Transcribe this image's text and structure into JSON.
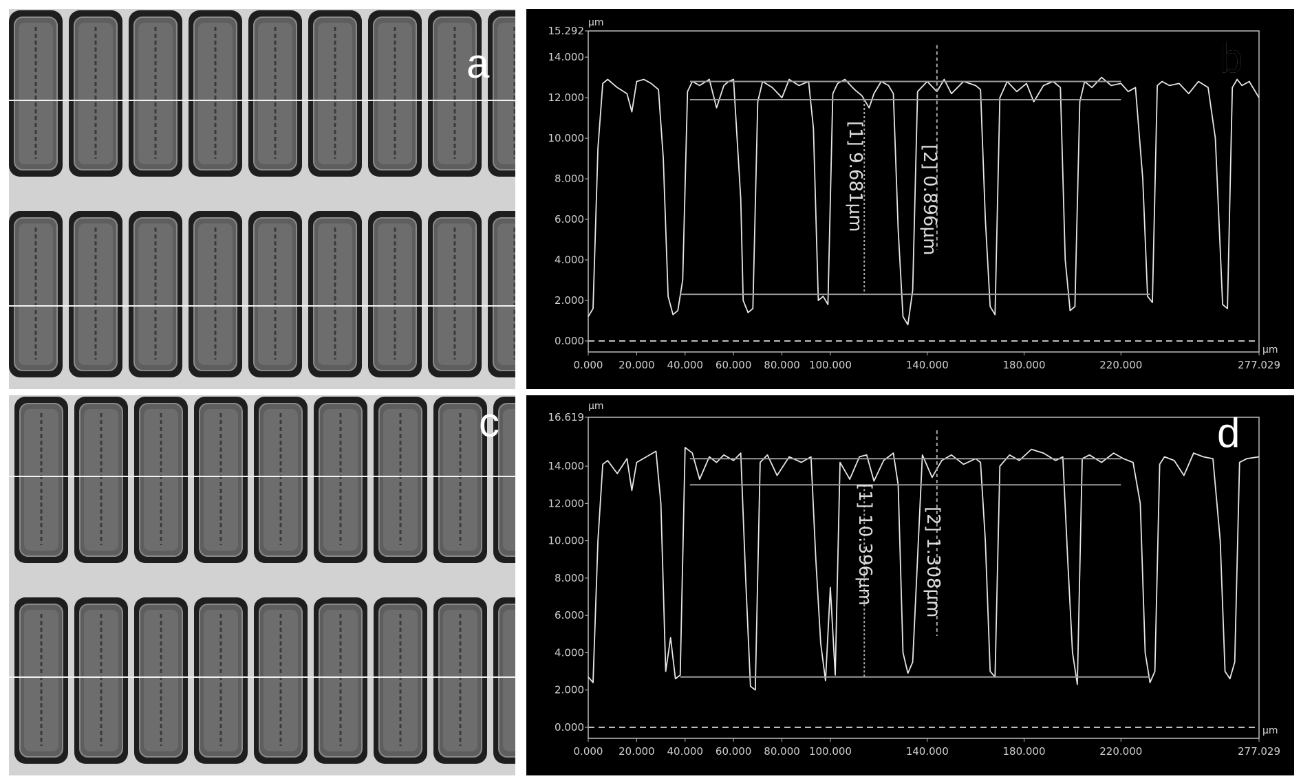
{
  "figure": {
    "panels": [
      {
        "letter": "a",
        "kind": "micrograph"
      },
      {
        "letter": "b",
        "kind": "height-profile"
      },
      {
        "letter": "c",
        "kind": "micrograph"
      },
      {
        "letter": "d",
        "kind": "height-profile"
      }
    ]
  },
  "colors": {
    "plot_bg": "#000000",
    "trace": "#e6e6e6",
    "micrograph_bg": "#d2d2d2",
    "pillar_frame": "#1e1e1e"
  },
  "chart_data": [
    {
      "panel": "b",
      "type": "line",
      "y_unit_label": "µm",
      "x_unit_label": "µm",
      "ylim": [
        0,
        15.292
      ],
      "xlim": [
        0,
        277.029
      ],
      "y_ticks": [
        "15.292",
        "14.000",
        "12.000",
        "10.000",
        "8.000",
        "6.000",
        "4.000",
        "2.000",
        "0.000"
      ],
      "y_tick_values": [
        15.292,
        14,
        12,
        10,
        8,
        6,
        4,
        2,
        0
      ],
      "x_ticks": [
        "0.000",
        "20.000",
        "40.000",
        "60.000",
        "80.000",
        "100.000",
        "140.000",
        "180.000",
        "220.000",
        "277.029"
      ],
      "x_tick_values": [
        0,
        20,
        40,
        60,
        80,
        100,
        140,
        180,
        220,
        277.029
      ],
      "measurements": [
        "[1] 9.681µm",
        "[2] 0.896µm"
      ],
      "series": [
        {
          "x": [
            0,
            2,
            4,
            6,
            8,
            12,
            16,
            18,
            20,
            23,
            26,
            29,
            31,
            33,
            35,
            37,
            39,
            41,
            43,
            46,
            50,
            53,
            56,
            58,
            60,
            63,
            64,
            66,
            68,
            70,
            72,
            76,
            80,
            83,
            87,
            91,
            93,
            95,
            97,
            99,
            101,
            103,
            106,
            110,
            113,
            116,
            118,
            121,
            124,
            126,
            128,
            130,
            132,
            134,
            136,
            140,
            144,
            147,
            150,
            155,
            160,
            162,
            164,
            166,
            168,
            170,
            173,
            177,
            181,
            184,
            188,
            192,
            195,
            197,
            199,
            201,
            203,
            205,
            208,
            212,
            216,
            220,
            223,
            226,
            229,
            231,
            233,
            235,
            237,
            240,
            244,
            248,
            252,
            256,
            259,
            262,
            264,
            266,
            268,
            270,
            273,
            277
          ],
          "y": [
            1.2,
            1.6,
            9.5,
            12.7,
            12.9,
            12.5,
            12.2,
            11.3,
            12.8,
            12.9,
            12.7,
            12.4,
            9.0,
            2.2,
            1.3,
            1.5,
            3.0,
            12.3,
            12.8,
            12.6,
            12.9,
            11.5,
            12.6,
            12.8,
            12.9,
            7.0,
            2.0,
            1.4,
            1.6,
            11.8,
            12.8,
            12.5,
            12.0,
            12.9,
            12.6,
            12.8,
            10.5,
            2.0,
            2.2,
            1.8,
            12.2,
            12.7,
            12.9,
            12.4,
            12.1,
            11.5,
            12.2,
            12.8,
            12.6,
            12.2,
            5.5,
            1.2,
            0.8,
            2.5,
            12.3,
            12.8,
            12.3,
            12.9,
            12.2,
            12.8,
            12.6,
            12.4,
            6.0,
            1.7,
            1.3,
            12.0,
            12.8,
            12.3,
            12.7,
            11.8,
            12.6,
            12.8,
            12.5,
            4.0,
            1.5,
            1.7,
            11.8,
            12.8,
            12.5,
            13.0,
            12.6,
            12.7,
            12.3,
            12.5,
            8.0,
            2.2,
            1.9,
            12.6,
            12.8,
            12.6,
            12.7,
            12.2,
            12.8,
            12.5,
            10.0,
            1.8,
            1.6,
            12.5,
            12.9,
            12.6,
            12.8,
            12.0
          ]
        }
      ]
    },
    {
      "panel": "d",
      "type": "line",
      "y_unit_label": "µm",
      "x_unit_label": "µm",
      "ylim": [
        0,
        16.619
      ],
      "xlim": [
        0,
        277.029
      ],
      "y_ticks": [
        "16.619",
        "14.000",
        "12.000",
        "10.000",
        "8.000",
        "6.000",
        "4.000",
        "2.000",
        "0.000"
      ],
      "y_tick_values": [
        16.619,
        14,
        12,
        10,
        8,
        6,
        4,
        2,
        0
      ],
      "x_ticks": [
        "0.000",
        "20.000",
        "40.000",
        "60.000",
        "80.000",
        "100.000",
        "140.000",
        "180.000",
        "220.000",
        "277.029"
      ],
      "x_tick_values": [
        0,
        20,
        40,
        60,
        80,
        100,
        140,
        180,
        220,
        277.029
      ],
      "measurements": [
        "[1] 10.396µm",
        "[2] 1.308µm"
      ],
      "series": [
        {
          "x": [
            0,
            2,
            4,
            6,
            8,
            12,
            16,
            18,
            20,
            24,
            28,
            30,
            32,
            34,
            36,
            38,
            40,
            43,
            46,
            50,
            53,
            56,
            60,
            63,
            65,
            67,
            69,
            71,
            74,
            78,
            83,
            88,
            92,
            94,
            96,
            98,
            100,
            102,
            104,
            108,
            112,
            115,
            118,
            122,
            126,
            128,
            130,
            132,
            134,
            138,
            142,
            146,
            150,
            155,
            160,
            162,
            164,
            166,
            168,
            170,
            174,
            178,
            183,
            188,
            193,
            196,
            198,
            200,
            202,
            204,
            207,
            212,
            217,
            221,
            225,
            228,
            230,
            232,
            234,
            236,
            238,
            242,
            246,
            250,
            254,
            258,
            261,
            263,
            265,
            267,
            269,
            272,
            277
          ],
          "y": [
            2.7,
            2.4,
            10.0,
            14.1,
            14.3,
            13.6,
            14.4,
            12.7,
            14.2,
            14.5,
            14.8,
            12.0,
            3.0,
            4.8,
            2.6,
            2.8,
            15.0,
            14.7,
            13.3,
            14.5,
            14.2,
            14.6,
            14.3,
            14.7,
            8.0,
            2.2,
            2.0,
            14.2,
            14.6,
            13.5,
            14.5,
            14.2,
            14.5,
            9.0,
            4.5,
            2.5,
            7.5,
            2.8,
            14.2,
            13.3,
            14.5,
            14.6,
            13.2,
            14.3,
            14.7,
            13.0,
            4.0,
            2.9,
            3.5,
            14.6,
            13.4,
            14.3,
            14.6,
            14.1,
            14.4,
            14.2,
            10.0,
            3.0,
            2.7,
            14.0,
            14.6,
            14.3,
            14.9,
            14.7,
            14.3,
            14.5,
            9.0,
            4.0,
            2.3,
            14.4,
            14.6,
            14.2,
            14.7,
            14.4,
            14.2,
            12.0,
            4.0,
            2.4,
            3.0,
            14.1,
            14.5,
            14.3,
            13.5,
            14.7,
            14.5,
            14.4,
            10.0,
            3.0,
            2.6,
            3.5,
            14.2,
            14.4,
            14.5
          ]
        }
      ]
    }
  ]
}
